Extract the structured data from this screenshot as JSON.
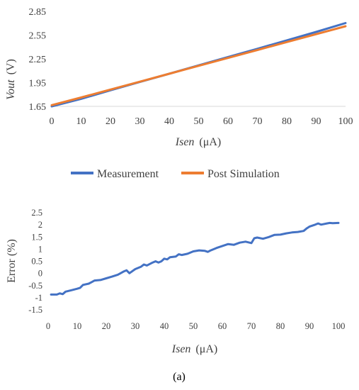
{
  "chart_data": [
    {
      "type": "line",
      "xlabel": "Isen",
      "xlabel_unit": "(μA)",
      "ylabel": "Vout",
      "ylabel_unit": "(V)",
      "xlim": [
        0,
        100
      ],
      "ylim": [
        1.65,
        2.85
      ],
      "x_ticks": [
        "0",
        "10",
        "20",
        "30",
        "40",
        "50",
        "60",
        "70",
        "80",
        "90",
        "100"
      ],
      "y_ticks": [
        "1.65",
        "1.95",
        "2.25",
        "2.55",
        "2.85"
      ],
      "grid": false,
      "legend": "bottom",
      "x": [
        0,
        10,
        20,
        30,
        40,
        50,
        60,
        70,
        80,
        90,
        100
      ],
      "series": [
        {
          "name": "Measurement",
          "color": "#4472C4",
          "values": [
            1.65,
            1.745,
            1.853,
            1.958,
            2.062,
            2.168,
            2.272,
            2.377,
            2.484,
            2.59,
            2.702
          ]
        },
        {
          "name": "Post Simulation",
          "color": "#ED7D31",
          "values": [
            1.665,
            1.762,
            1.862,
            1.962,
            2.062,
            2.162,
            2.262,
            2.362,
            2.462,
            2.562,
            2.662
          ]
        }
      ]
    },
    {
      "type": "line",
      "xlabel": "Isen",
      "xlabel_unit": "(μA)",
      "ylabel": "Error (%)",
      "xlim": [
        0,
        100
      ],
      "ylim": [
        -1.5,
        2.5
      ],
      "x_ticks": [
        "0",
        "10",
        "20",
        "30",
        "40",
        "50",
        "60",
        "70",
        "80",
        "90",
        "100"
      ],
      "y_ticks": [
        "-1.5",
        "-1",
        "-0.5",
        "0",
        "0.5",
        "1",
        "1.5",
        "2",
        "2.5"
      ],
      "grid": false,
      "x": [
        1,
        3,
        4,
        5,
        6,
        8,
        10,
        11,
        12,
        14,
        16,
        18,
        20,
        22,
        24,
        26,
        27,
        28,
        30,
        32,
        33,
        34,
        36,
        37,
        38,
        39,
        40,
        41,
        42,
        44,
        45,
        46,
        48,
        50,
        52,
        54,
        55,
        56,
        58,
        60,
        62,
        64,
        66,
        68,
        70,
        71,
        72,
        74,
        76,
        78,
        80,
        82,
        84,
        86,
        88,
        89,
        90,
        92,
        93,
        94,
        96,
        97,
        98,
        100
      ],
      "series": [
        {
          "name": "Error",
          "color": "#4472C4",
          "values": [
            -0.9,
            -0.9,
            -0.85,
            -0.88,
            -0.78,
            -0.72,
            -0.66,
            -0.62,
            -0.5,
            -0.45,
            -0.32,
            -0.3,
            -0.23,
            -0.16,
            -0.08,
            0.05,
            0.1,
            -0.02,
            0.15,
            0.25,
            0.34,
            0.3,
            0.42,
            0.47,
            0.42,
            0.47,
            0.58,
            0.55,
            0.64,
            0.67,
            0.76,
            0.73,
            0.78,
            0.88,
            0.92,
            0.9,
            0.86,
            0.92,
            1.02,
            1.1,
            1.18,
            1.15,
            1.24,
            1.28,
            1.22,
            1.42,
            1.45,
            1.4,
            1.47,
            1.56,
            1.57,
            1.62,
            1.66,
            1.68,
            1.72,
            1.82,
            1.9,
            1.98,
            2.03,
            1.98,
            2.03,
            2.05,
            2.04,
            2.05
          ]
        }
      ]
    }
  ],
  "caption": "(a)"
}
